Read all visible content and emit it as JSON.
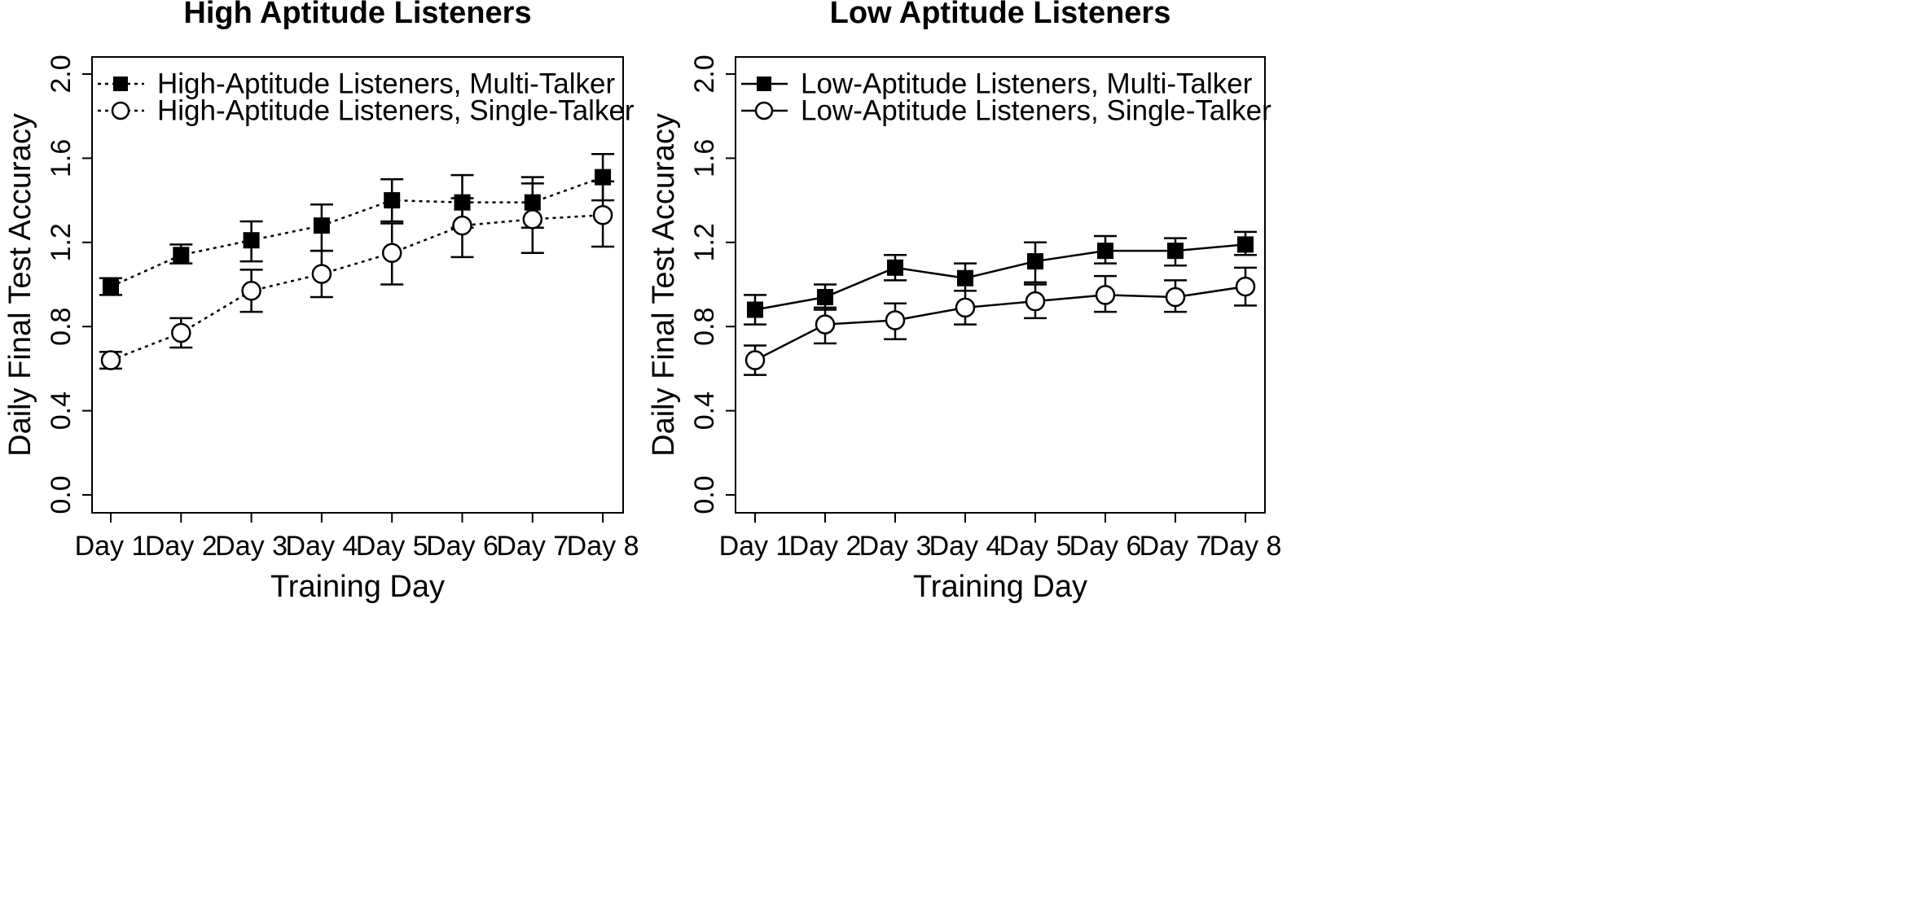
{
  "chart_data": [
    {
      "type": "line",
      "title": "High Aptitude Listeners",
      "xlabel": "Training Day",
      "ylabel": "Daily Final Test Accuracy",
      "categories": [
        "Day 1",
        "Day 2",
        "Day 3",
        "Day 4",
        "Day 5",
        "Day 6",
        "Day 7",
        "Day 8"
      ],
      "ylim": [
        0,
        2
      ],
      "yticks": [
        "0.0",
        "0.4",
        "0.8",
        "1.2",
        "1.6",
        "2.0"
      ],
      "yticks_values": [
        0,
        0.4,
        0.8,
        1.2,
        1.6,
        2.0
      ],
      "line_style": "dotted",
      "legend_position": "top-left",
      "series": [
        {
          "name": "High-Aptitude Listeners, Multi-Talker",
          "marker": "filled-square",
          "values": [
            0.99,
            1.14,
            1.21,
            1.28,
            1.4,
            1.39,
            1.39,
            1.51
          ],
          "err_low": [
            0.95,
            1.1,
            1.11,
            1.16,
            1.3,
            1.27,
            1.27,
            1.4
          ],
          "err_high": [
            1.03,
            1.19,
            1.3,
            1.38,
            1.5,
            1.52,
            1.51,
            1.62
          ]
        },
        {
          "name": "High-Aptitude Listeners, Single-Talker",
          "marker": "open-circle",
          "values": [
            0.64,
            0.77,
            0.97,
            1.05,
            1.15,
            1.28,
            1.31,
            1.33
          ],
          "err_low": [
            0.6,
            0.7,
            0.87,
            0.94,
            1.0,
            1.13,
            1.15,
            1.18
          ],
          "err_high": [
            0.68,
            0.84,
            1.07,
            1.16,
            1.29,
            1.41,
            1.48,
            1.49
          ]
        }
      ]
    },
    {
      "type": "line",
      "title": "Low Aptitude Listeners",
      "xlabel": "Training Day",
      "ylabel": "Daily Final Test Accuracy",
      "categories": [
        "Day 1",
        "Day 2",
        "Day 3",
        "Day 4",
        "Day 5",
        "Day 6",
        "Day 7",
        "Day 8"
      ],
      "ylim": [
        0,
        2
      ],
      "yticks": [
        "0.0",
        "0.4",
        "0.8",
        "1.2",
        "1.6",
        "2.0"
      ],
      "yticks_values": [
        0,
        0.4,
        0.8,
        1.2,
        1.6,
        2.0
      ],
      "line_style": "solid",
      "legend_position": "top-left",
      "series": [
        {
          "name": "Low-Aptitude Listeners, Multi-Talker",
          "marker": "filled-square",
          "values": [
            0.88,
            0.94,
            1.08,
            1.03,
            1.11,
            1.16,
            1.16,
            1.19
          ],
          "err_low": [
            0.81,
            0.88,
            1.02,
            0.97,
            1.01,
            1.1,
            1.09,
            1.14
          ],
          "err_high": [
            0.95,
            1.0,
            1.14,
            1.1,
            1.2,
            1.23,
            1.22,
            1.25
          ]
        },
        {
          "name": "Low-Aptitude Listeners, Single-Talker",
          "marker": "open-circle",
          "values": [
            0.64,
            0.81,
            0.83,
            0.89,
            0.92,
            0.95,
            0.94,
            0.99
          ],
          "err_low": [
            0.57,
            0.72,
            0.74,
            0.81,
            0.84,
            0.87,
            0.87,
            0.9
          ],
          "err_high": [
            0.71,
            0.89,
            0.91,
            0.97,
            1.0,
            1.04,
            1.02,
            1.08
          ]
        }
      ]
    }
  ]
}
